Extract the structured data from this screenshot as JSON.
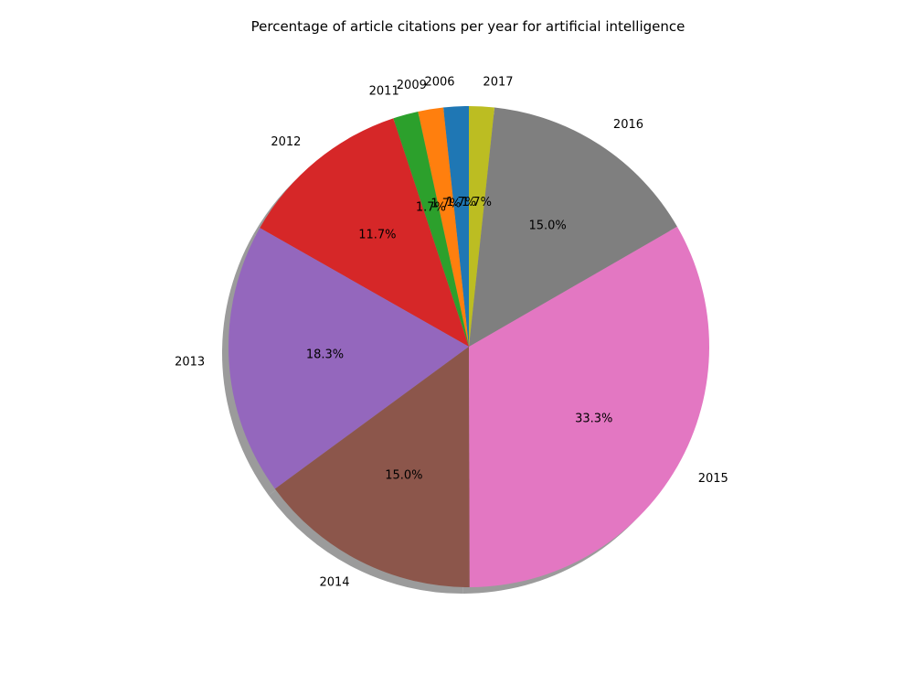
{
  "chart_data": {
    "type": "pie",
    "title": "Percentage of article citations per year for artificial intelligence",
    "start_angle_deg": 90,
    "direction": "counterclockwise",
    "shadow": true,
    "slices": [
      {
        "label": "2006",
        "value": 1.7,
        "pct_label": "1.7%",
        "color": "#1f77b4"
      },
      {
        "label": "2009",
        "value": 1.7,
        "pct_label": "1.7%",
        "color": "#ff7f0e"
      },
      {
        "label": "2011",
        "value": 1.7,
        "pct_label": "1.7%",
        "color": "#2ca02c"
      },
      {
        "label": "2012",
        "value": 11.7,
        "pct_label": "11.7%",
        "color": "#d62728"
      },
      {
        "label": "2013",
        "value": 18.3,
        "pct_label": "18.3%",
        "color": "#9467bd"
      },
      {
        "label": "2014",
        "value": 15.0,
        "pct_label": "15.0%",
        "color": "#8c564b"
      },
      {
        "label": "2015",
        "value": 33.3,
        "pct_label": "33.3%",
        "color": "#e377c2"
      },
      {
        "label": "2016",
        "value": 15.0,
        "pct_label": "15.0%",
        "color": "#7f7f7f"
      },
      {
        "label": "2017",
        "value": 1.7,
        "pct_label": "1.7%",
        "color": "#bcbd22"
      }
    ]
  }
}
